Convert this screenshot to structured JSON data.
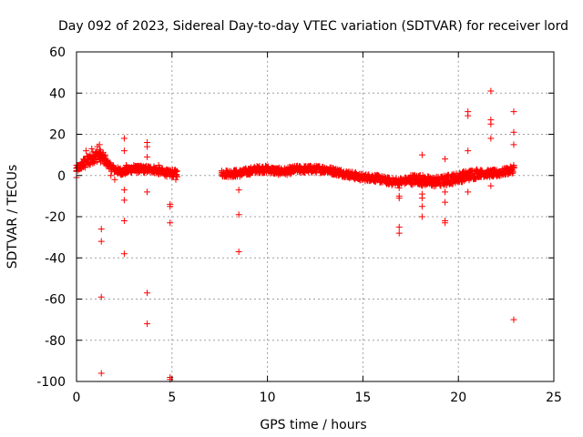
{
  "chart_data": {
    "type": "scatter",
    "title": "Day 092 of 2023, Sidereal Day-to-day VTEC variation (SDTVAR) for receiver lord",
    "xlabel": "GPS time / hours",
    "ylabel": "SDTVAR / TECUs",
    "xlim": [
      0,
      25
    ],
    "ylim": [
      -100,
      60
    ],
    "xticks": [
      0,
      5,
      10,
      15,
      20,
      25
    ],
    "yticks": [
      -100,
      -80,
      -60,
      -40,
      -20,
      0,
      20,
      40,
      60
    ],
    "grid": true,
    "marker": "+",
    "color": "#ff0000",
    "trend": [
      [
        0.0,
        3
      ],
      [
        0.3,
        5
      ],
      [
        0.6,
        7
      ],
      [
        0.9,
        9
      ],
      [
        1.2,
        10
      ],
      [
        1.4,
        8
      ],
      [
        1.6,
        6
      ],
      [
        1.8,
        4
      ],
      [
        2.0,
        3
      ],
      [
        2.2,
        2
      ],
      [
        2.5,
        2
      ],
      [
        2.8,
        3
      ],
      [
        3.2,
        3
      ],
      [
        3.6,
        3
      ],
      [
        4.0,
        3
      ],
      [
        4.4,
        2
      ],
      [
        4.8,
        1
      ],
      [
        5.2,
        1
      ],
      [
        7.6,
        1
      ],
      [
        8.0,
        1
      ],
      [
        8.5,
        1
      ],
      [
        9.0,
        2
      ],
      [
        9.5,
        3
      ],
      [
        10.0,
        3
      ],
      [
        10.5,
        2
      ],
      [
        11.0,
        2
      ],
      [
        11.5,
        3
      ],
      [
        12.0,
        3
      ],
      [
        12.5,
        3
      ],
      [
        13.0,
        3
      ],
      [
        13.5,
        2
      ],
      [
        14.0,
        1
      ],
      [
        14.5,
        0
      ],
      [
        15.0,
        -1
      ],
      [
        15.5,
        -1
      ],
      [
        16.0,
        -2
      ],
      [
        16.5,
        -3
      ],
      [
        17.0,
        -3
      ],
      [
        17.5,
        -2
      ],
      [
        18.0,
        -2
      ],
      [
        18.5,
        -3
      ],
      [
        19.0,
        -3
      ],
      [
        19.5,
        -2
      ],
      [
        20.0,
        -1
      ],
      [
        20.5,
        0
      ],
      [
        21.0,
        1
      ],
      [
        21.5,
        1
      ],
      [
        22.0,
        1
      ],
      [
        22.5,
        2
      ],
      [
        22.9,
        3
      ]
    ],
    "gaps": [
      [
        5.3,
        7.6
      ]
    ],
    "points": [
      [
        0.0,
        5
      ],
      [
        0.0,
        2
      ],
      [
        0.0,
        -1
      ],
      [
        0.5,
        12
      ],
      [
        0.8,
        13
      ],
      [
        1.1,
        14
      ],
      [
        1.2,
        15
      ],
      [
        1.3,
        -26
      ],
      [
        1.3,
        -32
      ],
      [
        1.3,
        -59
      ],
      [
        1.3,
        -96
      ],
      [
        1.5,
        10
      ],
      [
        1.8,
        0
      ],
      [
        2.0,
        -2
      ],
      [
        2.5,
        18
      ],
      [
        2.5,
        12
      ],
      [
        2.5,
        -7
      ],
      [
        2.5,
        -12
      ],
      [
        2.5,
        -22
      ],
      [
        2.5,
        -38
      ],
      [
        2.6,
        5
      ],
      [
        3.0,
        5
      ],
      [
        3.7,
        16
      ],
      [
        3.7,
        14
      ],
      [
        3.7,
        9
      ],
      [
        3.7,
        -8
      ],
      [
        3.7,
        -57
      ],
      [
        3.7,
        -72
      ],
      [
        4.3,
        5
      ],
      [
        4.9,
        -14
      ],
      [
        4.9,
        -15
      ],
      [
        4.9,
        -23
      ],
      [
        4.9,
        -98
      ],
      [
        4.9,
        -99
      ],
      [
        5.2,
        2
      ],
      [
        5.2,
        -2
      ],
      [
        8.5,
        -7
      ],
      [
        8.5,
        -19
      ],
      [
        8.5,
        -37
      ],
      [
        16.9,
        -10
      ],
      [
        16.9,
        -11
      ],
      [
        16.9,
        -25
      ],
      [
        16.9,
        -28
      ],
      [
        16.9,
        -6
      ],
      [
        18.1,
        10
      ],
      [
        18.1,
        -5
      ],
      [
        18.1,
        -9
      ],
      [
        18.1,
        -11
      ],
      [
        18.1,
        -15
      ],
      [
        18.1,
        -20
      ],
      [
        19.3,
        8
      ],
      [
        19.3,
        -8
      ],
      [
        19.3,
        -13
      ],
      [
        19.3,
        -22
      ],
      [
        19.3,
        -23
      ],
      [
        20.5,
        31
      ],
      [
        20.5,
        29
      ],
      [
        20.5,
        12
      ],
      [
        20.5,
        -8
      ],
      [
        21.7,
        41
      ],
      [
        21.7,
        27
      ],
      [
        21.7,
        25
      ],
      [
        21.7,
        18
      ],
      [
        21.7,
        -5
      ],
      [
        22.9,
        31
      ],
      [
        22.9,
        21
      ],
      [
        22.9,
        15
      ],
      [
        22.9,
        5
      ],
      [
        22.9,
        -70
      ]
    ]
  }
}
